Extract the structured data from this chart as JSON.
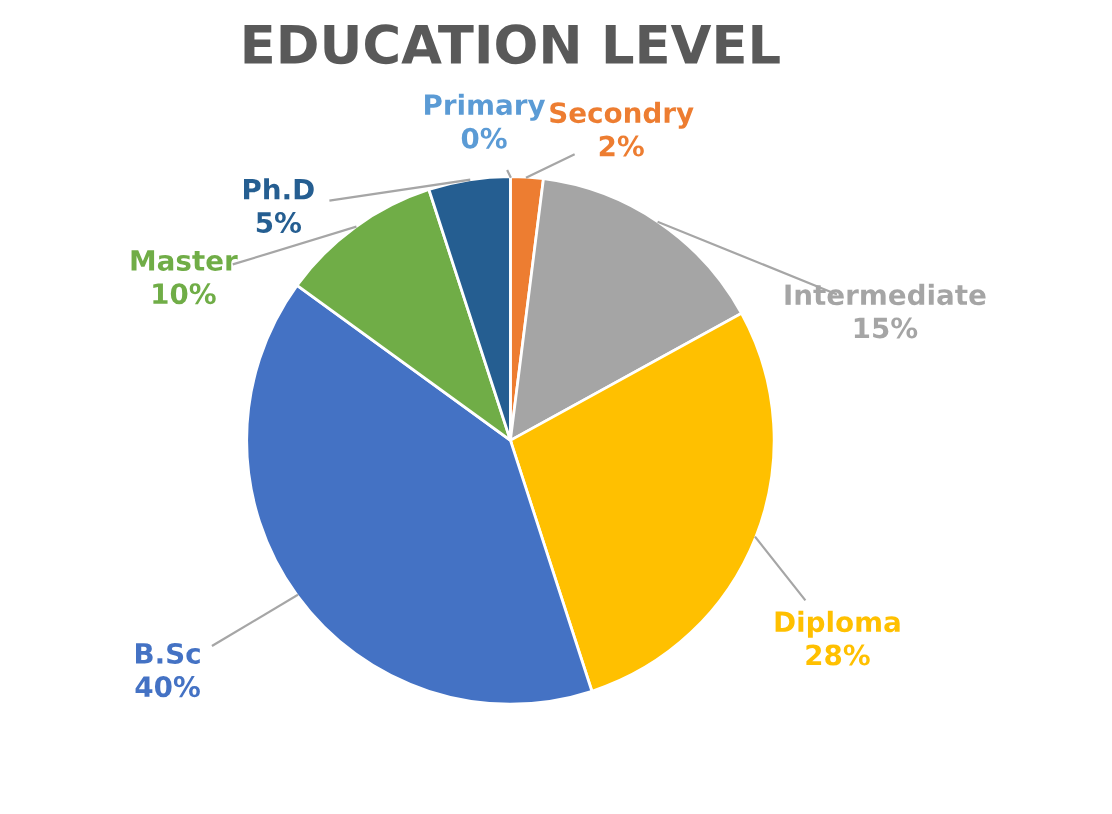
{
  "chart_data": {
    "type": "pie",
    "title": "EDUCATION LEVEL",
    "categories": [
      "Primary",
      "Secondry",
      "Intermediate",
      "Diploma",
      "B.Sc",
      "Master",
      "Ph.D"
    ],
    "values": [
      0,
      2,
      15,
      28,
      40,
      10,
      5
    ],
    "value_labels": [
      "0%",
      "2%",
      "15%",
      "28%",
      "40%",
      "10%",
      "5%"
    ],
    "colors": [
      "#5b9bd5",
      "#ed7d31",
      "#a5a5a5",
      "#ffc000",
      "#4472c4",
      "#70ad47",
      "#255e91"
    ]
  }
}
